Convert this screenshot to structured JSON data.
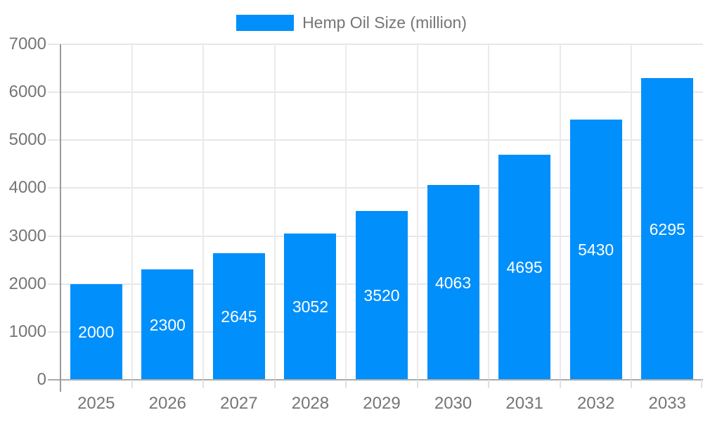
{
  "chart_data": {
    "type": "bar",
    "title": "Hemp Oil Size (million)",
    "legend": "Hemp Oil Size (million)",
    "legend_position": "top",
    "categories": [
      "2025",
      "2026",
      "2027",
      "2028",
      "2029",
      "2030",
      "2031",
      "2032",
      "2033"
    ],
    "values": [
      2000,
      2300,
      2645,
      3052,
      3520,
      4063,
      4695,
      5430,
      6295
    ],
    "yticks": [
      0,
      1000,
      2000,
      3000,
      4000,
      5000,
      6000,
      7000
    ],
    "ylim": [
      0,
      7000
    ],
    "xlabel": "",
    "ylabel": "",
    "grid": true,
    "value_labels": "inside-center",
    "colors": {
      "bar": "#008FFB",
      "grid": "#e7e7e7",
      "axis": "#9a9a9a",
      "tick_label": "#757575",
      "value_label": "#ffffff"
    }
  }
}
